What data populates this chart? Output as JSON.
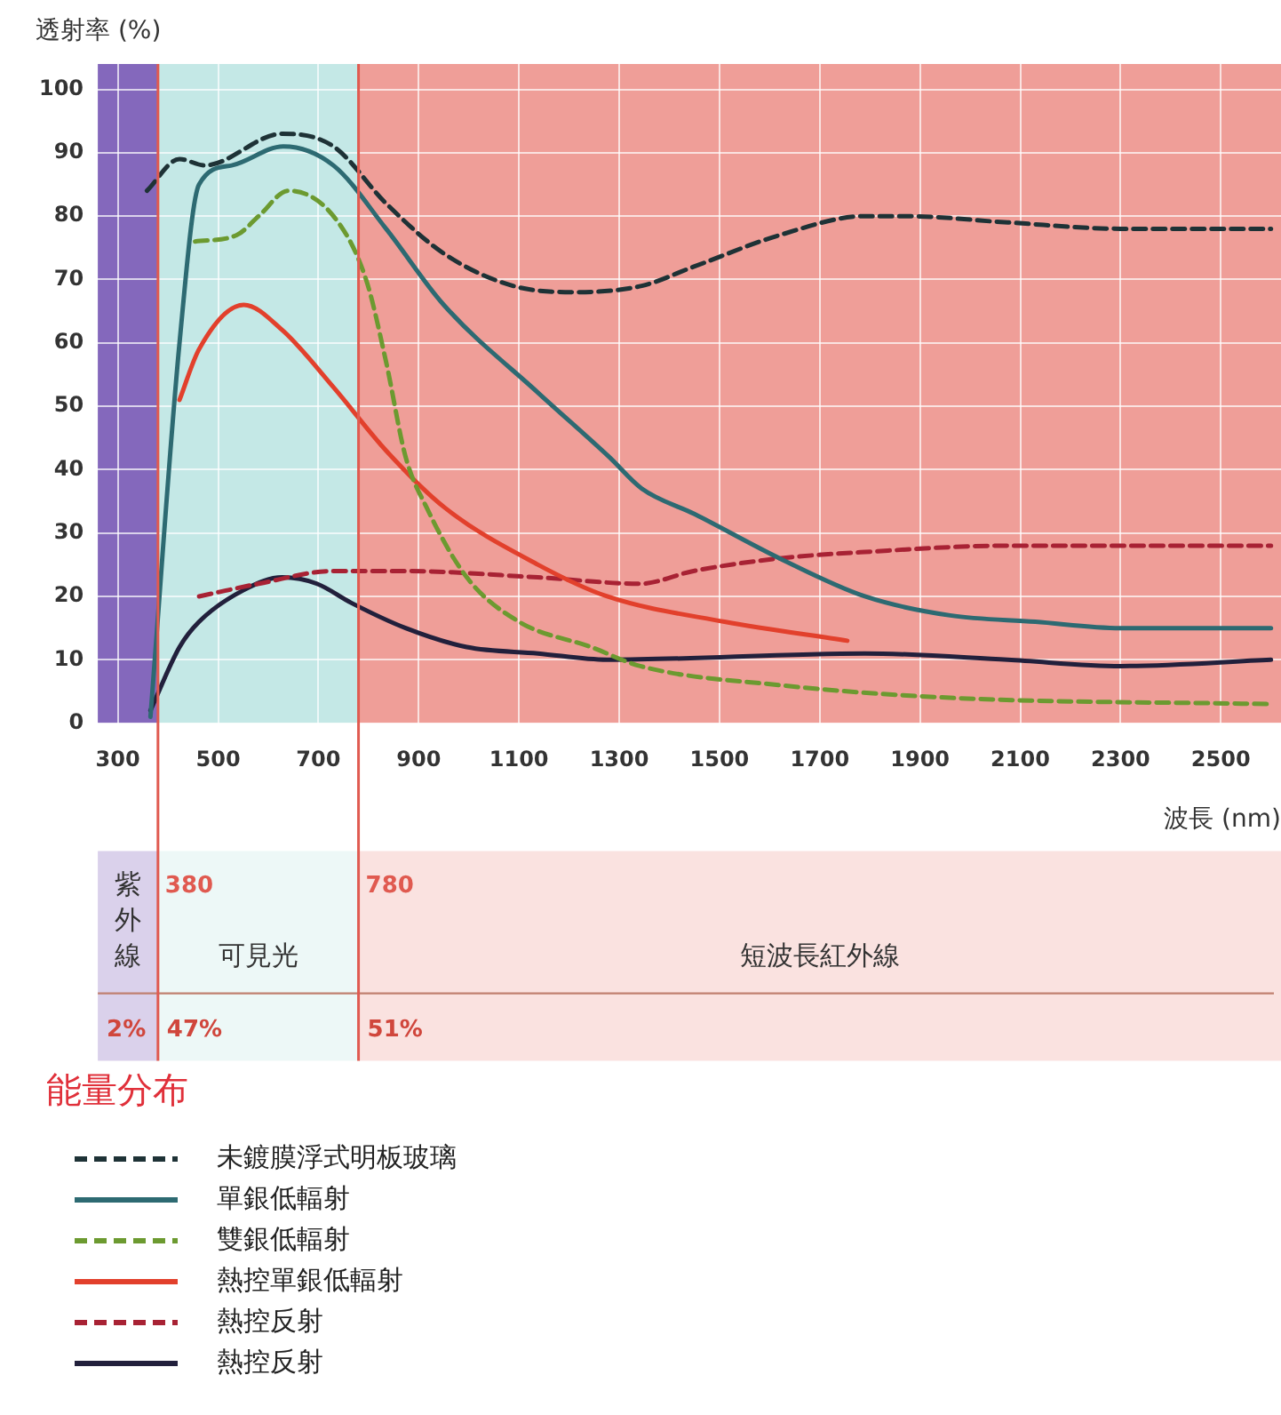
{
  "chart_data": {
    "type": "line",
    "xlabel": "波長 (nm)",
    "ylabel": "透射率 (%)",
    "xlim": [
      260,
      2620
    ],
    "xticks": [
      300,
      500,
      700,
      900,
      1100,
      1300,
      1500,
      1700,
      1900,
      2100,
      2300,
      2500
    ],
    "ylim": [
      0,
      104
    ],
    "yticks": [
      0,
      10,
      20,
      30,
      40,
      50,
      60,
      70,
      80,
      90,
      100
    ],
    "grid": true,
    "legend": "bottom left",
    "bands": [
      {
        "axis": "x",
        "from": 260,
        "to": 380,
        "color": "#8468bc"
      },
      {
        "axis": "x",
        "from": 380,
        "to": 780,
        "color": "#c4e8e6"
      },
      {
        "axis": "x",
        "from": 780,
        "to": 2620,
        "color": "#ef9e98"
      }
    ],
    "ref_lines": [
      {
        "axis": "x",
        "value": 380,
        "label": "380",
        "color": "#e05a50"
      },
      {
        "axis": "x",
        "value": 780,
        "label": "780",
        "color": "#e05a50"
      }
    ],
    "annotations": [
      "紫外線",
      "可見光",
      "短波長紅外線",
      "2%",
      "47%",
      "51%",
      "能量分布"
    ],
    "series": [
      {
        "name": "未鍍膜浮式明板玻璃",
        "color": "#1e3236",
        "line_style": "dashed",
        "x": [
          358,
          423,
          473,
          628,
          730,
          835,
          952,
          1088,
          1214,
          1345,
          1448,
          1620,
          1790,
          1870,
          2075,
          2300,
          2600
        ],
        "values": [
          84,
          89,
          88,
          93,
          91,
          82,
          74,
          69,
          68,
          69,
          72,
          77,
          80,
          80,
          79,
          78,
          78
        ]
      },
      {
        "name": "單銀低輻射",
        "color": "#2d6a72",
        "line_style": "solid",
        "x": [
          365,
          423,
          462,
          527,
          630,
          730,
          835,
          950,
          1140,
          1280,
          1345,
          1450,
          1620,
          1790,
          1960,
          2130,
          2300,
          2600
        ],
        "values": [
          1,
          60,
          85,
          88,
          91,
          88,
          78,
          66,
          52,
          42,
          37,
          33,
          26,
          20,
          17,
          16,
          15,
          15
        ]
      },
      {
        "name": "雙銀低輻射",
        "color": "#6c9a30",
        "line_style": "dashed",
        "x": [
          454,
          537,
          581,
          640,
          730,
          795,
          835,
          874,
          916,
          996,
          1100,
          1244,
          1342,
          1620,
          1960,
          2600
        ],
        "values": [
          76,
          77,
          80,
          84,
          80,
          70,
          57,
          42,
          34,
          23,
          16,
          12,
          9,
          6,
          4,
          3
        ]
      },
      {
        "name": "熱控單銀低輻射",
        "color": "#e2402c",
        "line_style": "solid",
        "x": [
          423,
          462,
          551,
          628,
          730,
          835,
          952,
          1138,
          1276,
          1510,
          1755
        ],
        "values": [
          51,
          59,
          66,
          62,
          53,
          43,
          34,
          25,
          20,
          16,
          13
        ]
      },
      {
        "name": "熱控反射",
        "color": "#a82234",
        "line_style": "dashed",
        "x": [
          462,
          581,
          730,
          874,
          1138,
          1342,
          1448,
          1620,
          1790,
          2075,
          2300,
          2600
        ],
        "values": [
          20,
          22,
          24,
          24,
          23,
          22,
          24,
          26,
          27,
          28,
          28,
          28
        ]
      },
      {
        "name": "熱控反射",
        "color": "#22203c",
        "line_style": "solid",
        "x": [
          365,
          423,
          462,
          551,
          628,
          697,
          765,
          874,
          996,
          1138,
          1276,
          1790,
          2075,
          2300,
          2600
        ],
        "values": [
          2,
          12,
          16,
          21,
          23,
          22,
          19,
          15,
          12,
          11,
          10,
          11,
          10,
          9,
          10
        ]
      }
    ]
  }
}
